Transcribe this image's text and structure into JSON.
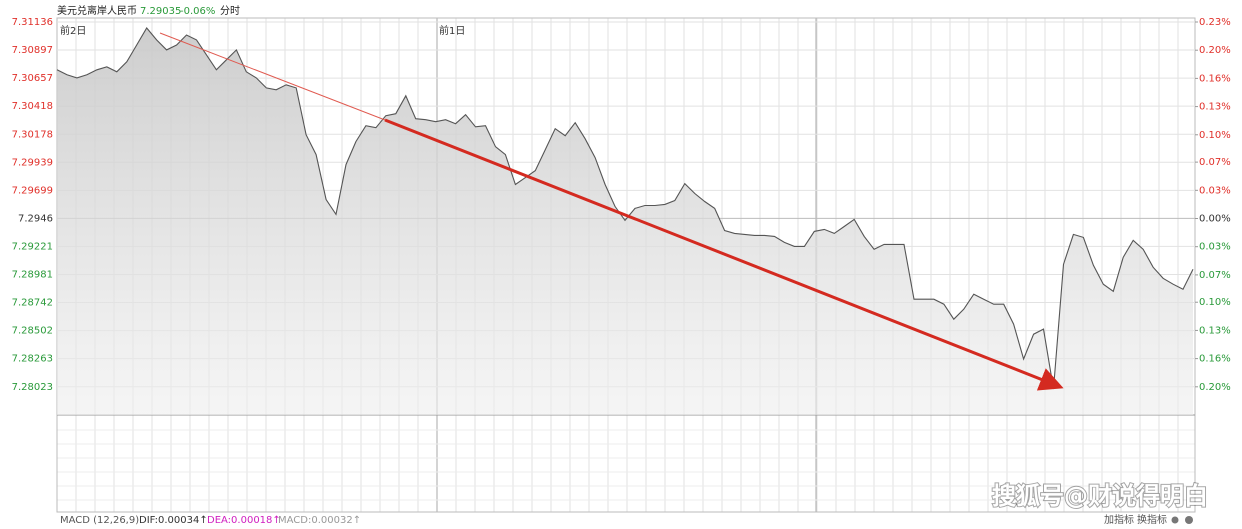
{
  "chart_data": {
    "type": "line",
    "title": "美元兑离岸人民币",
    "price": "7.29035",
    "change": "-0.06%",
    "mode": "分时",
    "sessions": [
      "前2日",
      "前1日"
    ],
    "series": [
      {
        "name": "美元兑离岸人民币",
        "color": "#555555",
        "values": [
          7.30728,
          7.30685,
          7.30659,
          7.30685,
          7.30728,
          7.30753,
          7.30711,
          7.30796,
          7.3094,
          7.31085,
          7.30983,
          7.30898,
          7.3094,
          7.31025,
          7.30983,
          7.30855,
          7.30728,
          7.30813,
          7.30898,
          7.30711,
          7.30659,
          7.30574,
          7.30557,
          7.306,
          7.30574,
          7.30174,
          7.30004,
          7.29621,
          7.29494,
          7.29919,
          7.30115,
          7.30251,
          7.30234,
          7.30336,
          7.30353,
          7.30506,
          7.30311,
          7.30302,
          7.30285,
          7.30302,
          7.30268,
          7.30345,
          7.30242,
          7.30251,
          7.30072,
          7.30004,
          7.29749,
          7.29808,
          7.29868,
          7.30047,
          7.30225,
          7.30166,
          7.30277,
          7.3014,
          7.29979,
          7.29749,
          7.29562,
          7.29443,
          7.29545,
          7.2957,
          7.2957,
          7.29579,
          7.29613,
          7.29757,
          7.29672,
          7.29604,
          7.29545,
          7.29357,
          7.29332,
          7.29323,
          7.29315,
          7.29315,
          7.29306,
          7.29255,
          7.29221,
          7.29221,
          7.29349,
          7.29366,
          7.29332,
          7.29391,
          7.29451,
          7.29306,
          7.29196,
          7.29238,
          7.29238,
          7.29238,
          7.2877,
          7.2877,
          7.2877,
          7.28728,
          7.286,
          7.28685,
          7.28813,
          7.2877,
          7.28728,
          7.28728,
          7.28558,
          7.2826,
          7.28472,
          7.28515,
          7.28004,
          7.29068,
          7.29323,
          7.29298,
          7.2906,
          7.28898,
          7.28838,
          7.29128,
          7.29272,
          7.29196,
          7.29043,
          7.28949,
          7.28898,
          7.28855,
          7.29026
        ]
      }
    ],
    "ylim": [
      7.27782,
      7.31136
    ],
    "yticks": [
      7.31136,
      7.30897,
      7.30657,
      7.30418,
      7.30178,
      7.29939,
      7.29699,
      7.2946,
      7.29221,
      7.28981,
      7.28742,
      7.28502,
      7.28263,
      7.28023
    ],
    "y2lim": [
      -0.23,
      0.23
    ],
    "y2ticks": [
      {
        "value": 0.23,
        "label": "0.23%"
      },
      {
        "value": 0.197,
        "label": "0.20%"
      },
      {
        "value": 0.164,
        "label": "0.16%"
      },
      {
        "value": 0.131,
        "label": "0.13%"
      },
      {
        "value": 0.098,
        "label": "0.10%"
      },
      {
        "value": 0.066,
        "label": "0.07%"
      },
      {
        "value": 0.033,
        "label": "0.03%"
      },
      {
        "value": 0,
        "label": "0.00%"
      },
      {
        "value": -0.033,
        "label": "0.03%"
      },
      {
        "value": -0.066,
        "label": "0.07%"
      },
      {
        "value": -0.098,
        "label": "0.10%"
      },
      {
        "value": -0.131,
        "label": "0.13%"
      },
      {
        "value": -0.164,
        "label": "0.16%"
      },
      {
        "value": -0.197,
        "label": "0.20%"
      }
    ],
    "base": 7.2946,
    "up_color": "#e0302a",
    "down_color": "#2a9a3a",
    "flat_color": "#333333",
    "grid": true,
    "indicator": {
      "name": "MACD (12,26,9)",
      "dif": "DIF:0.00034↑",
      "dea": "DEA:0.00018↑",
      "macd": "MACD:0.00032↑"
    },
    "buttons": [
      "加指标",
      "换指标"
    ],
    "watermark": "搜狐号@财说得明白"
  }
}
